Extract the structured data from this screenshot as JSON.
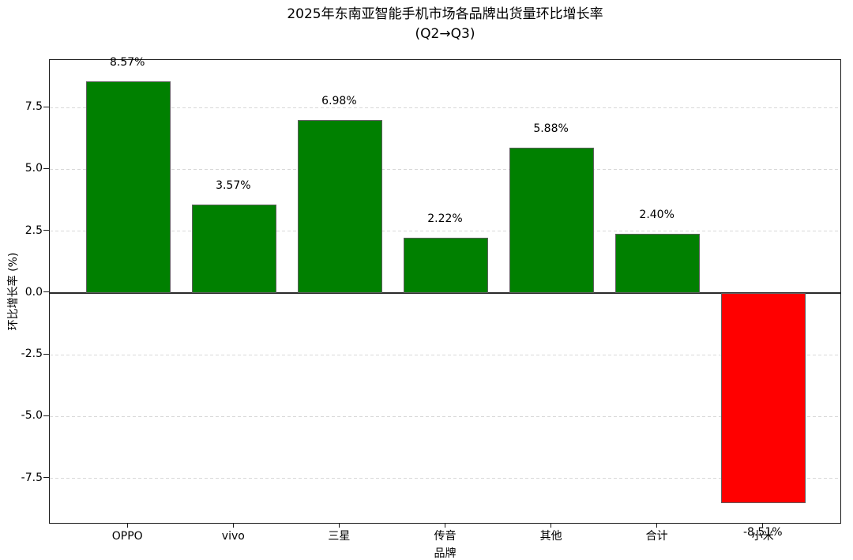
{
  "figure": {
    "title_line1": "2025年东南亚智能手机市场各品牌出货量环比增长率",
    "title_line2": "(Q2→Q3)",
    "xlabel": "品牌",
    "ylabel": "环比增长率 (%)"
  },
  "chart_data": {
    "type": "bar",
    "title": "2025年东南亚智能手机市场各品牌出货量环比增长率 (Q2→Q3)",
    "xlabel": "品牌",
    "ylabel": "环比增长率 (%)",
    "categories": [
      "OPPO",
      "vivo",
      "三星",
      "传音",
      "其他",
      "合计",
      "小米"
    ],
    "values": [
      8.57,
      3.57,
      6.98,
      2.22,
      5.88,
      2.4,
      -8.51
    ],
    "value_labels": [
      "8.57%",
      "3.57%",
      "6.98%",
      "2.22%",
      "5.88%",
      "2.40%",
      "-8.51%"
    ],
    "bar_colors": [
      "#008000",
      "#008000",
      "#008000",
      "#008000",
      "#008000",
      "#008000",
      "#ff0000"
    ],
    "yticks": [
      7.5,
      5.0,
      2.5,
      0.0,
      -2.5,
      -5.0,
      -7.5
    ],
    "ytick_labels": [
      "7.5",
      "5.0",
      "2.5",
      "0.0",
      "-2.5",
      "-5.0",
      "-7.5"
    ],
    "ylim": [
      -9.36,
      9.42
    ],
    "grid": "horizontal-dashed",
    "legend": "none",
    "colors": {
      "positive": "#008000",
      "negative": "#ff0000",
      "bar_edge": "#5f5f5f",
      "gridline": "#d8d8d8",
      "zero_line": "#2a2a2a",
      "spine": "#1a1a1a",
      "text": "#000000",
      "background": "#ffffff"
    }
  }
}
